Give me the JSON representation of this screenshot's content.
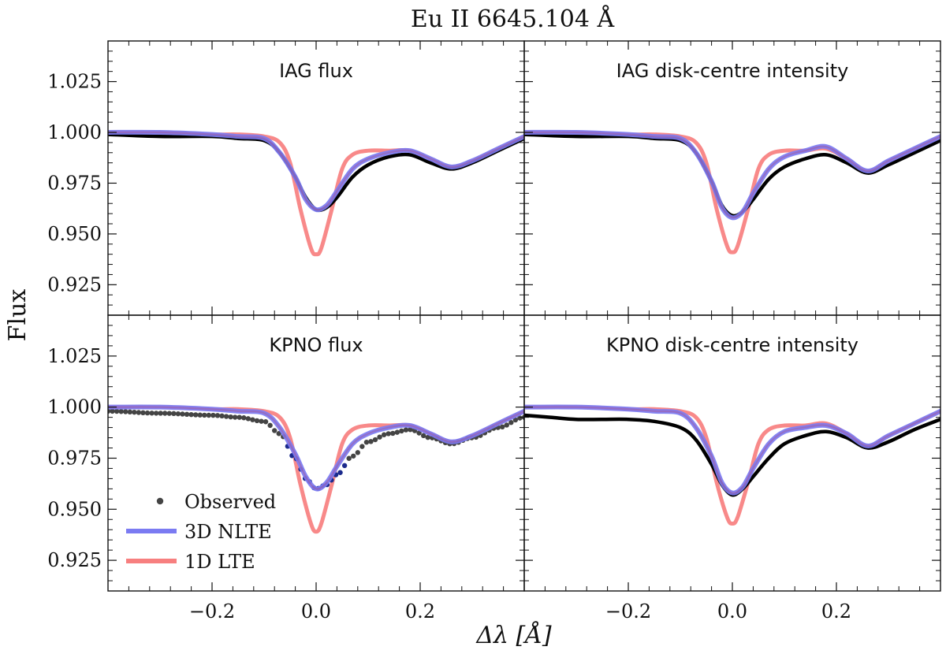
{
  "figure": {
    "title": "Eu II 6645.104 Å",
    "xlabel": "Δλ [Å]",
    "ylabel": "Flux"
  },
  "colors": {
    "observed": "#000000",
    "observed_dots": "#444444",
    "nlte3d": "#7b7bf2",
    "lte1d": "#f77f7f"
  },
  "legend": {
    "observed": "Observed",
    "nlte3d": "3D NLTE",
    "lte1d": "1D LTE",
    "location": "lower-left of bottom-left panel"
  },
  "chart_data": [
    {
      "type": "line",
      "title": "IAG flux",
      "xlim": [
        -0.4,
        0.4
      ],
      "ylim": [
        0.91,
        1.045
      ],
      "xticks": [
        -0.2,
        0.0,
        0.2
      ],
      "xtick_labels": [
        "−0.2",
        "0.0",
        "0.2"
      ],
      "yticks": [
        0.925,
        0.95,
        0.975,
        1.0,
        1.025
      ],
      "ytick_labels": [
        "0.925",
        "0.950",
        "0.975",
        "1.000",
        "1.025"
      ],
      "series": [
        {
          "name": "Observed",
          "style": "line",
          "x": [
            -0.4,
            -0.3,
            -0.2,
            -0.15,
            -0.1,
            -0.07,
            -0.04,
            -0.02,
            0.0,
            0.02,
            0.04,
            0.07,
            0.1,
            0.14,
            0.18,
            0.22,
            0.26,
            0.3,
            0.35,
            0.4
          ],
          "y": [
            0.999,
            0.998,
            0.998,
            0.997,
            0.996,
            0.99,
            0.978,
            0.968,
            0.962,
            0.963,
            0.968,
            0.978,
            0.984,
            0.988,
            0.989,
            0.985,
            0.982,
            0.985,
            0.991,
            0.997
          ]
        },
        {
          "name": "3D NLTE",
          "style": "line",
          "x": [
            -0.4,
            -0.3,
            -0.2,
            -0.15,
            -0.1,
            -0.07,
            -0.04,
            -0.02,
            0.0,
            0.02,
            0.04,
            0.07,
            0.1,
            0.14,
            0.18,
            0.22,
            0.26,
            0.3,
            0.35,
            0.4
          ],
          "y": [
            1.0,
            1.0,
            0.999,
            0.998,
            0.997,
            0.99,
            0.978,
            0.967,
            0.962,
            0.964,
            0.971,
            0.982,
            0.987,
            0.99,
            0.991,
            0.987,
            0.983,
            0.986,
            0.992,
            0.998
          ]
        },
        {
          "name": "1D LTE",
          "style": "line",
          "x": [
            -0.4,
            -0.3,
            -0.2,
            -0.15,
            -0.1,
            -0.07,
            -0.05,
            -0.03,
            -0.01,
            0.0,
            0.01,
            0.03,
            0.05,
            0.07,
            0.1,
            0.14,
            0.18,
            0.22,
            0.26,
            0.3,
            0.35,
            0.4
          ],
          "y": [
            1.0,
            1.0,
            0.999,
            0.999,
            0.998,
            0.995,
            0.985,
            0.962,
            0.943,
            0.94,
            0.943,
            0.962,
            0.982,
            0.989,
            0.991,
            0.991,
            0.991,
            0.987,
            0.983,
            0.986,
            0.992,
            0.998
          ]
        }
      ]
    },
    {
      "type": "line",
      "title": "IAG disk-centre intensity",
      "xlim": [
        -0.4,
        0.4
      ],
      "ylim": [
        0.91,
        1.045
      ],
      "xticks": [
        -0.2,
        0.0,
        0.2
      ],
      "xtick_labels": [
        "−0.2",
        "0.0",
        "0.2"
      ],
      "yticks": [
        0.925,
        0.95,
        0.975,
        1.0,
        1.025
      ],
      "ytick_labels": [
        "0.925",
        "0.950",
        "0.975",
        "1.000",
        "1.025"
      ],
      "series": [
        {
          "name": "Observed",
          "style": "line",
          "x": [
            -0.4,
            -0.3,
            -0.2,
            -0.15,
            -0.1,
            -0.07,
            -0.04,
            -0.02,
            0.0,
            0.02,
            0.04,
            0.07,
            0.1,
            0.14,
            0.18,
            0.22,
            0.26,
            0.3,
            0.35,
            0.4
          ],
          "y": [
            0.999,
            0.998,
            0.998,
            0.997,
            0.996,
            0.99,
            0.976,
            0.964,
            0.959,
            0.961,
            0.967,
            0.977,
            0.983,
            0.987,
            0.989,
            0.985,
            0.98,
            0.984,
            0.99,
            0.996
          ]
        },
        {
          "name": "3D NLTE",
          "style": "line",
          "x": [
            -0.4,
            -0.3,
            -0.2,
            -0.15,
            -0.1,
            -0.07,
            -0.04,
            -0.02,
            0.0,
            0.02,
            0.04,
            0.07,
            0.1,
            0.14,
            0.18,
            0.22,
            0.26,
            0.3,
            0.35,
            0.4
          ],
          "y": [
            1.0,
            1.0,
            0.999,
            0.998,
            0.997,
            0.99,
            0.976,
            0.963,
            0.958,
            0.961,
            0.97,
            0.982,
            0.988,
            0.991,
            0.993,
            0.987,
            0.981,
            0.986,
            0.992,
            0.998
          ]
        },
        {
          "name": "1D LTE",
          "style": "line",
          "x": [
            -0.4,
            -0.3,
            -0.2,
            -0.15,
            -0.1,
            -0.07,
            -0.05,
            -0.03,
            -0.01,
            0.0,
            0.01,
            0.03,
            0.05,
            0.07,
            0.1,
            0.14,
            0.18,
            0.22,
            0.26,
            0.3,
            0.35,
            0.4
          ],
          "y": [
            1.0,
            1.0,
            0.999,
            0.999,
            0.998,
            0.995,
            0.985,
            0.962,
            0.944,
            0.941,
            0.944,
            0.962,
            0.982,
            0.989,
            0.991,
            0.991,
            0.992,
            0.987,
            0.981,
            0.986,
            0.992,
            0.998
          ]
        }
      ]
    },
    {
      "type": "line",
      "title": "KPNO flux",
      "xlim": [
        -0.4,
        0.4
      ],
      "ylim": [
        0.91,
        1.045
      ],
      "xticks": [
        -0.2,
        0.0,
        0.2
      ],
      "xtick_labels": [
        "−0.2",
        "0.0",
        "0.2"
      ],
      "yticks": [
        0.925,
        0.95,
        0.975,
        1.0,
        1.025
      ],
      "ytick_labels": [
        "0.925",
        "0.950",
        "0.975",
        "1.000",
        "1.025"
      ],
      "series": [
        {
          "name": "Observed",
          "style": "dots",
          "x": [
            -0.4,
            -0.3,
            -0.2,
            -0.15,
            -0.1,
            -0.07,
            -0.04,
            -0.02,
            0.0,
            0.02,
            0.04,
            0.07,
            0.1,
            0.14,
            0.18,
            0.22,
            0.26,
            0.3,
            0.35,
            0.4
          ],
          "y": [
            0.998,
            0.997,
            0.996,
            0.995,
            0.993,
            0.987,
            0.975,
            0.965,
            0.96,
            0.962,
            0.967,
            0.976,
            0.983,
            0.987,
            0.989,
            0.985,
            0.982,
            0.985,
            0.99,
            0.995
          ]
        },
        {
          "name": "3D NLTE",
          "style": "line",
          "x": [
            -0.4,
            -0.3,
            -0.2,
            -0.15,
            -0.1,
            -0.07,
            -0.04,
            -0.02,
            0.0,
            0.02,
            0.04,
            0.07,
            0.1,
            0.14,
            0.18,
            0.22,
            0.26,
            0.3,
            0.35,
            0.4
          ],
          "y": [
            1.0,
            1.0,
            0.999,
            0.998,
            0.997,
            0.99,
            0.977,
            0.966,
            0.96,
            0.963,
            0.971,
            0.982,
            0.987,
            0.99,
            0.991,
            0.987,
            0.983,
            0.986,
            0.992,
            0.998
          ]
        },
        {
          "name": "1D LTE",
          "style": "line",
          "x": [
            -0.4,
            -0.3,
            -0.2,
            -0.15,
            -0.1,
            -0.07,
            -0.05,
            -0.03,
            -0.01,
            0.0,
            0.01,
            0.03,
            0.05,
            0.07,
            0.1,
            0.14,
            0.18,
            0.22,
            0.26,
            0.3,
            0.35,
            0.4
          ],
          "y": [
            1.0,
            1.0,
            0.999,
            0.999,
            0.998,
            0.995,
            0.985,
            0.962,
            0.943,
            0.939,
            0.943,
            0.962,
            0.982,
            0.989,
            0.991,
            0.991,
            0.991,
            0.987,
            0.983,
            0.986,
            0.992,
            0.998
          ]
        }
      ]
    },
    {
      "type": "line",
      "title": "KPNO disk-centre intensity",
      "xlim": [
        -0.4,
        0.4
      ],
      "ylim": [
        0.91,
        1.045
      ],
      "xticks": [
        -0.2,
        0.0,
        0.2
      ],
      "xtick_labels": [
        "−0.2",
        "0.0",
        "0.2"
      ],
      "yticks": [
        0.925,
        0.95,
        0.975,
        1.0,
        1.025
      ],
      "ytick_labels": [
        "0.925",
        "0.950",
        "0.975",
        "1.000",
        "1.025"
      ],
      "series": [
        {
          "name": "Observed",
          "style": "line",
          "x": [
            -0.4,
            -0.35,
            -0.3,
            -0.25,
            -0.2,
            -0.15,
            -0.1,
            -0.07,
            -0.04,
            -0.02,
            0.0,
            0.02,
            0.04,
            0.07,
            0.1,
            0.14,
            0.18,
            0.22,
            0.26,
            0.3,
            0.35,
            0.4
          ],
          "y": [
            0.996,
            0.995,
            0.994,
            0.994,
            0.994,
            0.993,
            0.99,
            0.984,
            0.972,
            0.962,
            0.957,
            0.96,
            0.966,
            0.975,
            0.982,
            0.986,
            0.988,
            0.985,
            0.98,
            0.983,
            0.989,
            0.994
          ]
        },
        {
          "name": "3D NLTE",
          "style": "line",
          "x": [
            -0.4,
            -0.3,
            -0.2,
            -0.15,
            -0.1,
            -0.07,
            -0.04,
            -0.02,
            0.0,
            0.02,
            0.04,
            0.07,
            0.1,
            0.14,
            0.18,
            0.22,
            0.26,
            0.3,
            0.35,
            0.4
          ],
          "y": [
            1.0,
            1.0,
            0.999,
            0.998,
            0.997,
            0.99,
            0.976,
            0.963,
            0.958,
            0.961,
            0.97,
            0.982,
            0.988,
            0.99,
            0.991,
            0.987,
            0.981,
            0.986,
            0.992,
            0.998
          ]
        },
        {
          "name": "1D LTE",
          "style": "line",
          "x": [
            -0.4,
            -0.3,
            -0.2,
            -0.15,
            -0.1,
            -0.07,
            -0.05,
            -0.03,
            -0.01,
            0.0,
            0.01,
            0.03,
            0.05,
            0.07,
            0.1,
            0.14,
            0.18,
            0.22,
            0.26,
            0.3,
            0.35,
            0.4
          ],
          "y": [
            1.0,
            1.0,
            0.999,
            0.999,
            0.998,
            0.995,
            0.985,
            0.963,
            0.946,
            0.943,
            0.946,
            0.963,
            0.982,
            0.989,
            0.991,
            0.991,
            0.992,
            0.987,
            0.981,
            0.986,
            0.992,
            0.998
          ]
        }
      ]
    }
  ]
}
